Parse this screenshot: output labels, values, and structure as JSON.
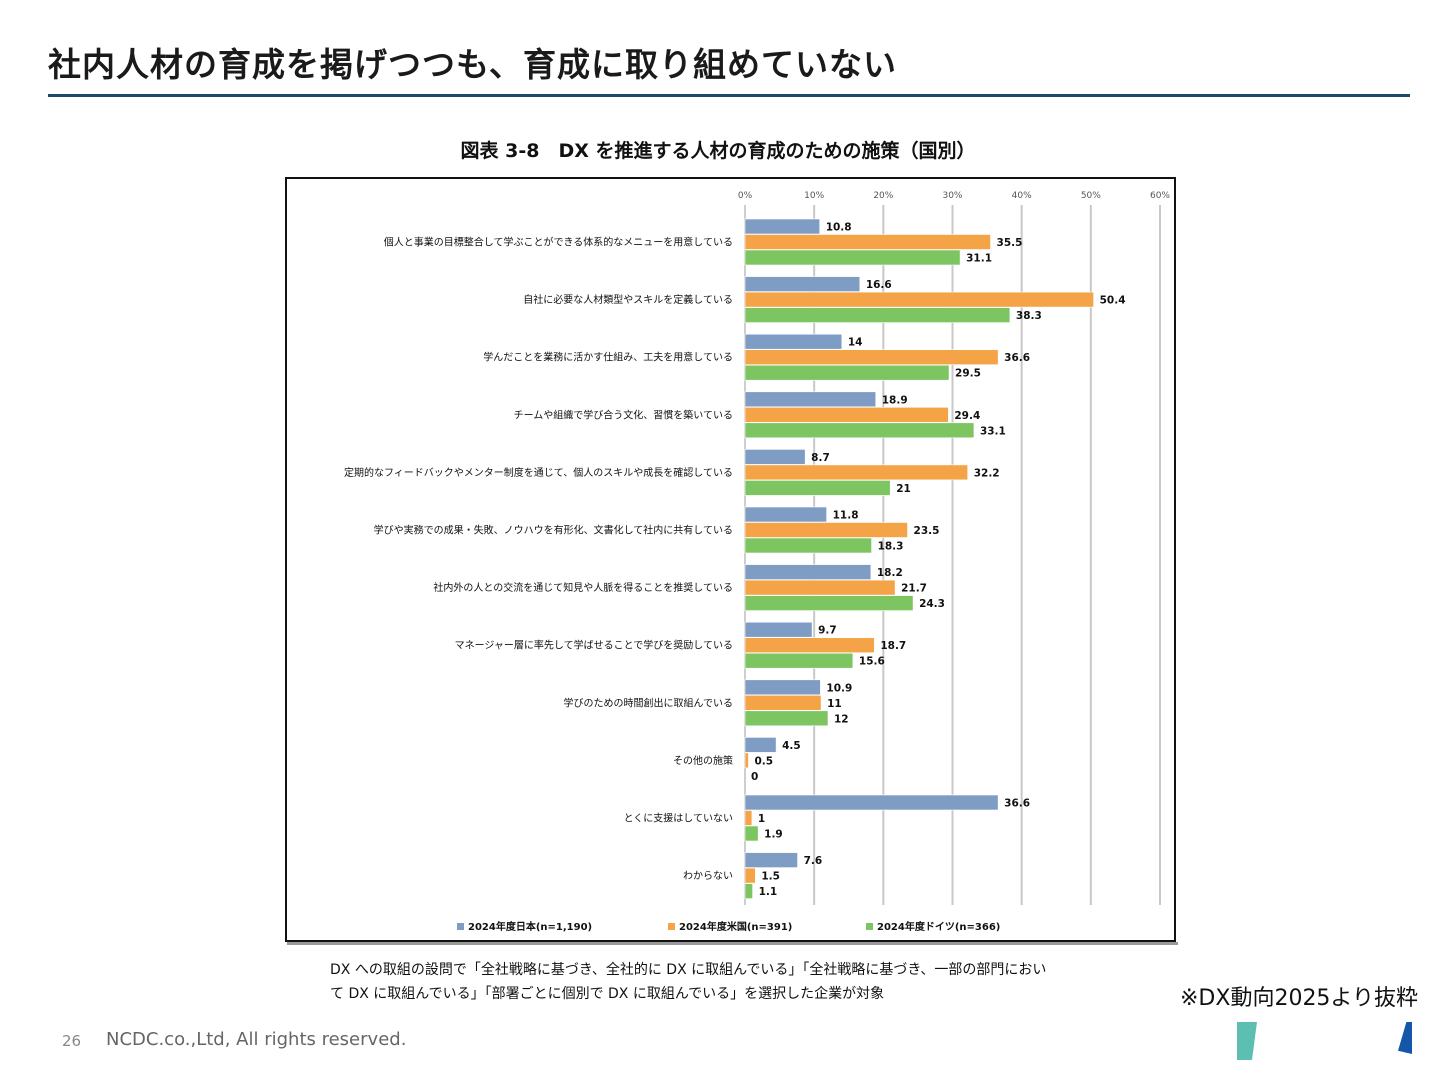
{
  "slide": {
    "title": "社内人材の育成を掲げつつも、育成に取り組めていない",
    "page_number": "26",
    "copyright": "NCDC.co.,Ltd, All rights reserved.",
    "source": "※DX動向2025より抜粋",
    "note_lines": [
      "DX への取組の設問で「全社戦略に基づき、全社的に DX に取組んでいる」「全社戦略に基づき、一部の部門におい",
      "て DX に取組んでいる」「部署ごとに個別で DX に取組んでいる」を選択した企業が対象"
    ],
    "colors": {
      "title_rule": "#1b4a6b",
      "deco_teal": "#5dbfb1",
      "deco_blue": "#1457a8"
    }
  },
  "chart_data": {
    "type": "bar",
    "orientation": "horizontal",
    "title": "図表 3-8　DX を推進する人材の育成のための施策（国別）",
    "xlabel": "",
    "ylabel": "",
    "xlim": [
      0,
      60
    ],
    "x_ticks": [
      "0%",
      "10%",
      "20%",
      "30%",
      "40%",
      "50%",
      "60%"
    ],
    "grid": true,
    "legend_position": "bottom",
    "categories": [
      "個人と事業の目標整合して学ぶことができる体系的なメニューを用意している",
      "自社に必要な人材類型やスキルを定義している",
      "学んだことを業務に活かす仕組み、工夫を用意している",
      "チームや組織で学び合う文化、習慣を築いている",
      "定期的なフィードバックやメンター制度を通じて、個人のスキルや成長を確認している",
      "学びや実務での成果・失敗、ノウハウを有形化、文書化して社内に共有している",
      "社内外の人との交流を通じて知見や人脈を得ることを推奨している",
      "マネージャー層に率先して学ばせることで学びを奨励している",
      "学びのための時間創出に取組んでいる",
      "その他の施策",
      "とくに支援はしていない",
      "わからない"
    ],
    "series": [
      {
        "name": "2024年度日本(n=1,190)",
        "color": "#7f9cc4",
        "values": [
          10.8,
          16.6,
          14,
          18.9,
          8.7,
          11.8,
          18.2,
          9.7,
          10.9,
          4.5,
          36.6,
          7.6
        ]
      },
      {
        "name": "2024年度米国(n=391)",
        "color": "#f4a346",
        "values": [
          35.5,
          50.4,
          36.6,
          29.4,
          32.2,
          23.5,
          21.7,
          18.7,
          11,
          0.5,
          1,
          1.5
        ]
      },
      {
        "name": "2024年度ドイツ(n=366)",
        "color": "#7cc561",
        "values": [
          31.1,
          38.3,
          29.5,
          33.1,
          21,
          18.3,
          24.3,
          15.6,
          12,
          0,
          1.9,
          1.1
        ]
      }
    ]
  }
}
